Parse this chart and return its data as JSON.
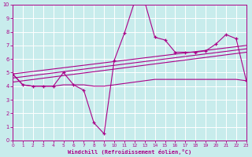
{
  "xlabel": "Windchill (Refroidissement éolien,°C)",
  "background_color": "#c8ecec",
  "grid_color": "#ffffff",
  "line_color": "#aa0088",
  "xlim": [
    0,
    23
  ],
  "ylim": [
    0,
    10
  ],
  "xticks": [
    0,
    1,
    2,
    3,
    4,
    5,
    6,
    7,
    8,
    9,
    10,
    11,
    12,
    13,
    14,
    15,
    16,
    17,
    18,
    19,
    20,
    21,
    22,
    23
  ],
  "yticks": [
    0,
    1,
    2,
    3,
    4,
    5,
    6,
    7,
    8,
    9,
    10
  ],
  "main_series": [
    4.9,
    4.1,
    4.0,
    4.0,
    4.0,
    5.0,
    4.1,
    3.7,
    1.3,
    0.5,
    5.9,
    7.9,
    10.2,
    10.2,
    7.6,
    7.4,
    6.5,
    6.5,
    6.5,
    6.6,
    7.1,
    7.8,
    7.5,
    4.4
  ],
  "flat_series": [
    4.9,
    4.1,
    4.0,
    4.0,
    4.0,
    4.1,
    4.1,
    4.1,
    4.0,
    4.0,
    4.1,
    4.2,
    4.3,
    4.4,
    4.5,
    4.5,
    4.5,
    4.5,
    4.5,
    4.5,
    4.5,
    4.5,
    4.5,
    4.4
  ],
  "regression_lines": [
    {
      "x": [
        0,
        23
      ],
      "y": [
        4.3,
        6.5
      ]
    },
    {
      "x": [
        0,
        23
      ],
      "y": [
        4.6,
        6.75
      ]
    },
    {
      "x": [
        0,
        23
      ],
      "y": [
        4.9,
        7.0
      ]
    }
  ]
}
